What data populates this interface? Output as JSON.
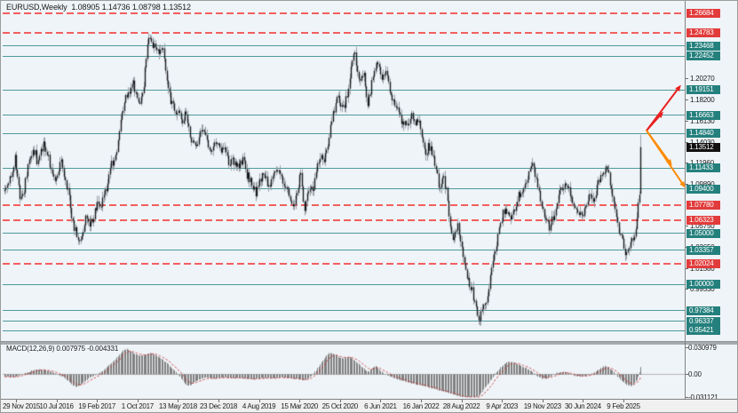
{
  "window": {
    "title": "EURUSD,Weekly  1.08905 1.14736 1.08798 1.13512",
    "symbol": "EURUSD",
    "timeframe": "Weekly"
  },
  "colors": {
    "plot_background": "#eff4f8",
    "candle_body": "#17191c",
    "candle_wick": "#9aa1a8",
    "support_line": "#4d9a9c",
    "resistance_line": "#f25f5f",
    "badge_teal": "#24807d",
    "badge_red": "#e23b3b",
    "badge_black": "#111111",
    "histogram": "#7f7f7f",
    "signal_line": "#cc3434",
    "zero_line": "#b4b4b4",
    "arrow_red": "#ea2020",
    "arrow_orange": "#ff8a00"
  },
  "price_axis": {
    "plain_ticks": [
      {
        "label": "1.20270",
        "value": 1.2027
      },
      {
        "label": "1.18200",
        "value": 1.182
      },
      {
        "label": "1.16130",
        "value": 1.1613
      },
      {
        "label": "1.14030",
        "value": 1.1403
      },
      {
        "label": "1.11960",
        "value": 1.1196
      },
      {
        "label": "1.09890",
        "value": 1.0989
      },
      {
        "label": "1.05750",
        "value": 1.0575
      },
      {
        "label": "1.03650",
        "value": 1.0365
      },
      {
        "label": "1.01580",
        "value": 1.0158
      },
      {
        "label": "0.99530",
        "value": 0.9953
      }
    ],
    "current_price": {
      "label": "1.13512",
      "value": 1.13512
    }
  },
  "levels": {
    "resistance": [
      {
        "label": "1.26684",
        "value": 1.26684
      },
      {
        "label": "1.24783",
        "value": 1.24783
      },
      {
        "label": "1.07780",
        "value": 1.0778
      },
      {
        "label": "1.06323",
        "value": 1.06323
      },
      {
        "label": "1.02024",
        "value": 1.02024
      }
    ],
    "support": [
      {
        "label": "1.23468",
        "value": 1.23468
      },
      {
        "label": "1.22452",
        "value": 1.22452
      },
      {
        "label": "1.19151",
        "value": 1.19151
      },
      {
        "label": "1.16663",
        "value": 1.16663
      },
      {
        "label": "1.14840",
        "value": 1.1484
      },
      {
        "label": "1.11433",
        "value": 1.11433
      },
      {
        "label": "1.09400",
        "value": 1.094
      },
      {
        "label": "1.05000",
        "value": 1.05
      },
      {
        "label": "1.03357",
        "value": 1.03357
      },
      {
        "label": "1.00000",
        "value": 1.0
      },
      {
        "label": "0.97384",
        "value": 0.97384
      },
      {
        "label": "0.96337",
        "value": 0.96337
      },
      {
        "label": "0.95421",
        "value": 0.95421
      }
    ]
  },
  "time_axis": {
    "labels": [
      "29 Nov 2015",
      "10 Jul 2016",
      "19 Feb 2017",
      "1 Oct 2017",
      "13 May 2018",
      "23 Dec 2018",
      "4 Aug 2019",
      "15 Mar 2020",
      "25 Oct 2020",
      "6 Jun 2021",
      "16 Jan 2022",
      "28 Aug 2022",
      "9 Apr 2023",
      "19 Nov 2023",
      "30 Jun 2024",
      "9 Feb 2025"
    ]
  },
  "macd": {
    "label_full": "MACD(12,26,9) 0.007975 -0.004331",
    "name": "MACD(12,26,9)",
    "main_value": "0.007975",
    "signal_value": "-0.004331",
    "scale": {
      "top": "0.030979",
      "zero": "0.00",
      "bottom": "-0.031121"
    }
  },
  "chart_data": {
    "type": "candlestick",
    "title": "EURUSD Weekly with MACD(12,26,9)",
    "y_axis_range": [
      0.9438,
      1.2722
    ],
    "macd_range": [
      -0.031121,
      0.030979
    ],
    "last_bar": {
      "open": 1.08905,
      "high": 1.14736,
      "low": 1.08798,
      "close": 1.13512
    },
    "price_anchors": [
      [
        4,
        1.092
      ],
      [
        8,
        1.1
      ],
      [
        12,
        1.112
      ],
      [
        16,
        1.126
      ],
      [
        19,
        1.1
      ],
      [
        22,
        1.082
      ],
      [
        26,
        1.095
      ],
      [
        30,
        1.115
      ],
      [
        34,
        1.126
      ],
      [
        38,
        1.132
      ],
      [
        41,
        1.118
      ],
      [
        44,
        1.128
      ],
      [
        48,
        1.14
      ],
      [
        51,
        1.133
      ],
      [
        54,
        1.12
      ],
      [
        57,
        1.112
      ],
      [
        60,
        1.102
      ],
      [
        64,
        1.112
      ],
      [
        68,
        1.12
      ],
      [
        72,
        1.103
      ],
      [
        76,
        1.09
      ],
      [
        80,
        1.062
      ],
      [
        84,
        1.052
      ],
      [
        88,
        1.04
      ],
      [
        92,
        1.052
      ],
      [
        96,
        1.066
      ],
      [
        100,
        1.06
      ],
      [
        104,
        1.066
      ],
      [
        108,
        1.078
      ],
      [
        112,
        1.073
      ],
      [
        116,
        1.088
      ],
      [
        120,
        1.096
      ],
      [
        124,
        1.118
      ],
      [
        128,
        1.124
      ],
      [
        132,
        1.142
      ],
      [
        136,
        1.168
      ],
      [
        140,
        1.182
      ],
      [
        144,
        1.19
      ],
      [
        148,
        1.202
      ],
      [
        152,
        1.186
      ],
      [
        156,
        1.176
      ],
      [
        160,
        1.192
      ],
      [
        164,
        1.225
      ],
      [
        167,
        1.247
      ],
      [
        170,
        1.238
      ],
      [
        174,
        1.232
      ],
      [
        178,
        1.228
      ],
      [
        182,
        1.233
      ],
      [
        185,
        1.208
      ],
      [
        188,
        1.192
      ],
      [
        192,
        1.178
      ],
      [
        196,
        1.172
      ],
      [
        200,
        1.168
      ],
      [
        204,
        1.16
      ],
      [
        208,
        1.17
      ],
      [
        212,
        1.152
      ],
      [
        216,
        1.138
      ],
      [
        220,
        1.134
      ],
      [
        224,
        1.146
      ],
      [
        228,
        1.155
      ],
      [
        232,
        1.14
      ],
      [
        236,
        1.13
      ],
      [
        240,
        1.136
      ],
      [
        244,
        1.142
      ],
      [
        248,
        1.132
      ],
      [
        252,
        1.136
      ],
      [
        256,
        1.12
      ],
      [
        260,
        1.124
      ],
      [
        264,
        1.118
      ],
      [
        268,
        1.114
      ],
      [
        272,
        1.124
      ],
      [
        276,
        1.108
      ],
      [
        280,
        1.104
      ],
      [
        284,
        1.094
      ],
      [
        287,
        1.089
      ],
      [
        290,
        1.098
      ],
      [
        294,
        1.108
      ],
      [
        298,
        1.103
      ],
      [
        302,
        1.098
      ],
      [
        306,
        1.106
      ],
      [
        310,
        1.115
      ],
      [
        314,
        1.108
      ],
      [
        318,
        1.098
      ],
      [
        322,
        1.092
      ],
      [
        326,
        1.084
      ],
      [
        330,
        1.079
      ],
      [
        334,
        1.093
      ],
      [
        337,
        1.112
      ],
      [
        341,
        1.072
      ],
      [
        344,
        1.088
      ],
      [
        348,
        1.098
      ],
      [
        352,
        1.092
      ],
      [
        356,
        1.115
      ],
      [
        360,
        1.128
      ],
      [
        364,
        1.122
      ],
      [
        368,
        1.135
      ],
      [
        372,
        1.162
      ],
      [
        376,
        1.176
      ],
      [
        380,
        1.184
      ],
      [
        384,
        1.172
      ],
      [
        388,
        1.18
      ],
      [
        392,
        1.196
      ],
      [
        395,
        1.218
      ],
      [
        398,
        1.228
      ],
      [
        401,
        1.212
      ],
      [
        404,
        1.198
      ],
      [
        408,
        1.21
      ],
      [
        412,
        1.176
      ],
      [
        416,
        1.192
      ],
      [
        420,
        1.21
      ],
      [
        423,
        1.222
      ],
      [
        426,
        1.215
      ],
      [
        430,
        1.202
      ],
      [
        434,
        1.21
      ],
      [
        438,
        1.19
      ],
      [
        442,
        1.182
      ],
      [
        446,
        1.172
      ],
      [
        450,
        1.162
      ],
      [
        454,
        1.158
      ],
      [
        458,
        1.16
      ],
      [
        462,
        1.166
      ],
      [
        466,
        1.158
      ],
      [
        470,
        1.162
      ],
      [
        474,
        1.148
      ],
      [
        478,
        1.13
      ],
      [
        482,
        1.136
      ],
      [
        486,
        1.128
      ],
      [
        490,
        1.113
      ],
      [
        494,
        1.092
      ],
      [
        498,
        1.106
      ],
      [
        502,
        1.088
      ],
      [
        506,
        1.056
      ],
      [
        510,
        1.042
      ],
      [
        514,
        1.058
      ],
      [
        518,
        1.042
      ],
      [
        522,
        1.022
      ],
      [
        526,
        1.002
      ],
      [
        530,
        0.996
      ],
      [
        534,
        0.978
      ],
      [
        538,
        0.962
      ],
      [
        542,
        0.975
      ],
      [
        546,
        0.983
      ],
      [
        550,
        1.002
      ],
      [
        554,
        1.022
      ],
      [
        558,
        1.042
      ],
      [
        562,
        1.06
      ],
      [
        566,
        1.072
      ],
      [
        570,
        1.068
      ],
      [
        574,
        1.062
      ],
      [
        578,
        1.072
      ],
      [
        582,
        1.088
      ],
      [
        586,
        1.092
      ],
      [
        590,
        1.102
      ],
      [
        594,
        1.108
      ],
      [
        598,
        1.12
      ],
      [
        602,
        1.108
      ],
      [
        606,
        1.088
      ],
      [
        610,
        1.072
      ],
      [
        614,
        1.062
      ],
      [
        618,
        1.056
      ],
      [
        622,
        1.068
      ],
      [
        626,
        1.082
      ],
      [
        630,
        1.092
      ],
      [
        634,
        1.098
      ],
      [
        638,
        1.096
      ],
      [
        642,
        1.082
      ],
      [
        646,
        1.076
      ],
      [
        650,
        1.072
      ],
      [
        654,
        1.068
      ],
      [
        658,
        1.078
      ],
      [
        662,
        1.086
      ],
      [
        666,
        1.082
      ],
      [
        670,
        1.092
      ],
      [
        674,
        1.104
      ],
      [
        678,
        1.112
      ],
      [
        681,
        1.116
      ],
      [
        684,
        1.108
      ],
      [
        688,
        1.088
      ],
      [
        692,
        1.072
      ],
      [
        696,
        1.052
      ],
      [
        700,
        1.042
      ],
      [
        703,
        1.028
      ],
      [
        706,
        1.03
      ],
      [
        709,
        1.042
      ],
      [
        712,
        1.048
      ],
      [
        715,
        1.052
      ],
      [
        717,
        1.082
      ],
      [
        719,
        1.088
      ],
      [
        721,
        1.135
      ]
    ],
    "macd_anchors": [
      [
        4,
        -0.003
      ],
      [
        12,
        -0.004
      ],
      [
        20,
        -0.002
      ],
      [
        28,
        0.001
      ],
      [
        36,
        0.004
      ],
      [
        44,
        0.0055
      ],
      [
        52,
        0.004
      ],
      [
        58,
        0.002
      ],
      [
        64,
        -0.001
      ],
      [
        70,
        -0.004
      ],
      [
        76,
        -0.009
      ],
      [
        82,
        -0.014
      ],
      [
        86,
        -0.015
      ],
      [
        90,
        -0.012
      ],
      [
        95,
        -0.008
      ],
      [
        100,
        -0.004
      ],
      [
        105,
        -0.0015
      ],
      [
        110,
        0.0005
      ],
      [
        115,
        0.004
      ],
      [
        120,
        0.009
      ],
      [
        126,
        0.014
      ],
      [
        132,
        0.021
      ],
      [
        137,
        0.027
      ],
      [
        141,
        0.029
      ],
      [
        145,
        0.027
      ],
      [
        150,
        0.0235
      ],
      [
        155,
        0.021
      ],
      [
        160,
        0.0215
      ],
      [
        165,
        0.0235
      ],
      [
        169,
        0.024
      ],
      [
        174,
        0.022
      ],
      [
        179,
        0.019
      ],
      [
        185,
        0.014
      ],
      [
        191,
        0.008
      ],
      [
        197,
        0.002
      ],
      [
        203,
        -0.006
      ],
      [
        208,
        -0.013
      ],
      [
        212,
        -0.014
      ],
      [
        216,
        -0.011
      ],
      [
        220,
        -0.008
      ],
      [
        225,
        -0.006
      ],
      [
        230,
        -0.0045
      ],
      [
        235,
        -0.005
      ],
      [
        240,
        -0.0055
      ],
      [
        245,
        -0.0045
      ],
      [
        250,
        -0.004
      ],
      [
        256,
        -0.0045
      ],
      [
        262,
        -0.005
      ],
      [
        268,
        -0.0045
      ],
      [
        274,
        -0.005
      ],
      [
        280,
        -0.0055
      ],
      [
        286,
        -0.006
      ],
      [
        292,
        -0.005
      ],
      [
        298,
        -0.0045
      ],
      [
        304,
        -0.005
      ],
      [
        310,
        -0.0045
      ],
      [
        316,
        -0.004
      ],
      [
        322,
        -0.0045
      ],
      [
        328,
        -0.0055
      ],
      [
        334,
        -0.006
      ],
      [
        340,
        -0.0075
      ],
      [
        345,
        -0.006
      ],
      [
        350,
        -0.002
      ],
      [
        354,
        0.003
      ],
      [
        358,
        0.009
      ],
      [
        362,
        0.015
      ],
      [
        366,
        0.021
      ],
      [
        370,
        0.0245
      ],
      [
        374,
        0.0235
      ],
      [
        378,
        0.021
      ],
      [
        382,
        0.0185
      ],
      [
        386,
        0.018
      ],
      [
        390,
        0.0195
      ],
      [
        394,
        0.019
      ],
      [
        398,
        0.016
      ],
      [
        402,
        0.012
      ],
      [
        406,
        0.008
      ],
      [
        410,
        0.0045
      ],
      [
        414,
        0.003
      ],
      [
        418,
        0.0065
      ],
      [
        421,
        0.009
      ],
      [
        424,
        0.0075
      ],
      [
        427,
        0.004
      ],
      [
        430,
        0.0015
      ],
      [
        434,
        -0.001
      ],
      [
        438,
        -0.003
      ],
      [
        442,
        -0.0045
      ],
      [
        446,
        -0.006
      ],
      [
        450,
        -0.0075
      ],
      [
        455,
        -0.009
      ],
      [
        460,
        -0.0105
      ],
      [
        465,
        -0.0115
      ],
      [
        470,
        -0.0125
      ],
      [
        475,
        -0.0135
      ],
      [
        480,
        -0.015
      ],
      [
        485,
        -0.0165
      ],
      [
        490,
        -0.018
      ],
      [
        495,
        -0.0195
      ],
      [
        500,
        -0.021
      ],
      [
        505,
        -0.0225
      ],
      [
        510,
        -0.024
      ],
      [
        515,
        -0.0255
      ],
      [
        520,
        -0.027
      ],
      [
        525,
        -0.0285
      ],
      [
        530,
        -0.029
      ],
      [
        535,
        -0.0275
      ],
      [
        540,
        -0.023
      ],
      [
        545,
        -0.016
      ],
      [
        550,
        -0.009
      ],
      [
        554,
        -0.003
      ],
      [
        558,
        0.002
      ],
      [
        562,
        0.007
      ],
      [
        566,
        0.011
      ],
      [
        570,
        0.0135
      ],
      [
        574,
        0.014
      ],
      [
        578,
        0.0125
      ],
      [
        582,
        0.0105
      ],
      [
        586,
        0.009
      ],
      [
        590,
        0.0075
      ],
      [
        594,
        0.005
      ],
      [
        598,
        0.002
      ],
      [
        602,
        -0.0015
      ],
      [
        606,
        -0.004
      ],
      [
        610,
        -0.006
      ],
      [
        614,
        -0.0055
      ],
      [
        618,
        -0.0035
      ],
      [
        622,
        -0.001
      ],
      [
        626,
        0.001
      ],
      [
        630,
        0.002
      ],
      [
        634,
        0.0025
      ],
      [
        638,
        0.0015
      ],
      [
        642,
        -0.0005
      ],
      [
        646,
        -0.002
      ],
      [
        650,
        -0.003
      ],
      [
        654,
        -0.0028
      ],
      [
        658,
        -0.0022
      ],
      [
        662,
        -0.0012
      ],
      [
        666,
        0.0005
      ],
      [
        670,
        0.003
      ],
      [
        674,
        0.0058
      ],
      [
        678,
        0.0085
      ],
      [
        681,
        0.009
      ],
      [
        684,
        0.0075
      ],
      [
        688,
        0.004
      ],
      [
        692,
        -0.0005
      ],
      [
        696,
        -0.005
      ],
      [
        700,
        -0.009
      ],
      [
        704,
        -0.012
      ],
      [
        708,
        -0.0145
      ],
      [
        711,
        -0.013
      ],
      [
        714,
        -0.01
      ],
      [
        717,
        -0.005
      ],
      [
        719,
        0.002
      ],
      [
        721,
        0.008
      ]
    ],
    "arrows": [
      {
        "from": [
          727,
          146
        ],
        "to": [
          744,
          127
        ],
        "color_key": "arrow_red",
        "direction": "up"
      },
      {
        "from": [
          727,
          146
        ],
        "to": [
          764,
          97
        ],
        "color_key": "arrow_red",
        "direction": "up"
      },
      {
        "from": [
          727,
          146
        ],
        "to": [
          754,
          183
        ],
        "color_key": "arrow_orange",
        "direction": "down"
      },
      {
        "from": [
          727,
          146
        ],
        "to": [
          769,
          208
        ],
        "color_key": "arrow_orange",
        "direction": "down"
      }
    ]
  }
}
